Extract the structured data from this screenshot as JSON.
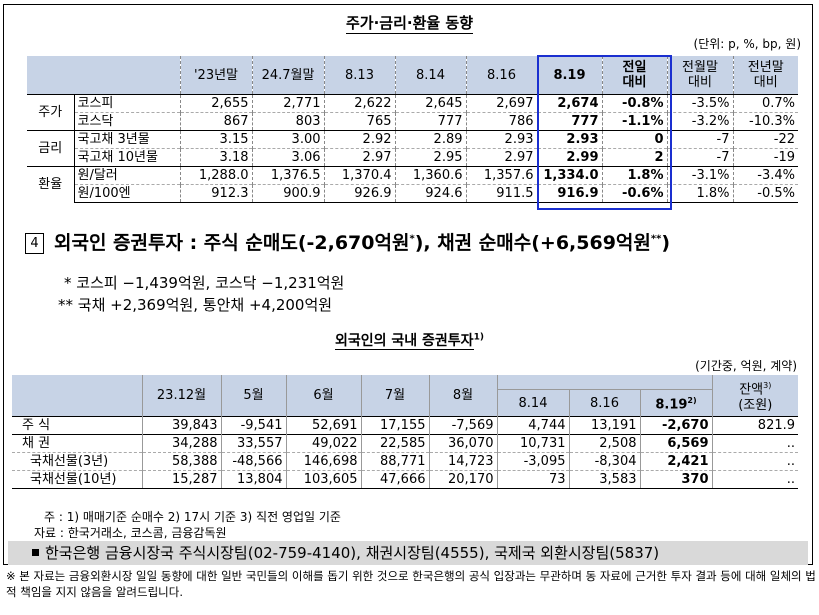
{
  "title": "주가·금리·환율 동향",
  "unit": "(단위: p, %, bp, 원)",
  "table1": {
    "headers": [
      "",
      "",
      "'23년말",
      "24.7월말",
      "8.13",
      "8.14",
      "8.16",
      "8.19",
      "전일\n대비",
      "전월말\n대비",
      "전년말\n대비"
    ],
    "groups": [
      {
        "name": "주가",
        "rows": [
          {
            "label": "코스피",
            "values": [
              "2,655",
              "2,771",
              "2,622",
              "2,645",
              "2,697",
              "2,674",
              "-0.8%",
              "-3.5%",
              "0.7%"
            ]
          },
          {
            "label": "코스닥",
            "values": [
              "867",
              "803",
              "765",
              "777",
              "786",
              "777",
              "-1.1%",
              "-3.2%",
              "-10.3%"
            ]
          }
        ]
      },
      {
        "name": "금리",
        "rows": [
          {
            "label": "국고채 3년물",
            "values": [
              "3.15",
              "3.00",
              "2.92",
              "2.89",
              "2.93",
              "2.93",
              "0",
              "-7",
              "-22"
            ]
          },
          {
            "label": "국고채 10년물",
            "values": [
              "3.18",
              "3.06",
              "2.97",
              "2.95",
              "2.97",
              "2.99",
              "2",
              "-7",
              "-19"
            ]
          }
        ]
      },
      {
        "name": "환율",
        "rows": [
          {
            "label": "원/달러",
            "values": [
              "1,288.0",
              "1,376.5",
              "1,370.4",
              "1,360.6",
              "1,357.6",
              "1,334.0",
              "1.8%",
              "-3.1%",
              "-3.4%"
            ]
          },
          {
            "label": "원/100엔",
            "values": [
              "912.3",
              "900.9",
              "926.9",
              "924.6",
              "911.5",
              "916.9",
              "-0.6%",
              "1.8%",
              "-0.5%"
            ]
          }
        ]
      }
    ]
  },
  "section4": {
    "number": "4",
    "text": "외국인 증권투자 : 주식 순매도(-2,670억원",
    "sup1": "*",
    "text2": "), 채권 순매수(+6,569억원",
    "sup2": "**",
    "text3": ")"
  },
  "notes": [
    "*  코스피 −1,439억원, 코스닥 −1,231억원",
    "**  국채 +2,369억원, 통안채 +4,200억원"
  ],
  "title2": "외국인의 국내 증권투자",
  "title2_sup": "1)",
  "unit2": "(기간중, 억원, 계약)",
  "table2": {
    "headers": [
      "23.12월",
      "5월",
      "6월",
      "7월",
      "8월",
      "8.14",
      "8.16",
      "8.19",
      "잔액",
      "(조원)"
    ],
    "header_sup_819": "2)",
    "header_sup_bal": "3)",
    "rows": [
      {
        "label": "주   식",
        "values": [
          "39,843",
          "-9,541",
          "52,691",
          "17,155",
          "-7,569",
          "4,744",
          "13,191",
          "-2,670",
          "821.9"
        ]
      },
      {
        "label": "채   권",
        "values": [
          "34,288",
          "33,557",
          "49,022",
          "22,585",
          "36,070",
          "10,731",
          "2,508",
          "6,569",
          ".."
        ]
      },
      {
        "label": "국채선물(3년)",
        "values": [
          "58,388",
          "-48,566",
          "146,698",
          "88,771",
          "14,723",
          "-3,095",
          "-8,304",
          "2,421",
          ".."
        ]
      },
      {
        "label": "국채선물(10년)",
        "values": [
          "15,287",
          "13,804",
          "103,605",
          "47,666",
          "20,170",
          "73",
          "3,583",
          "370",
          ".."
        ]
      }
    ]
  },
  "footnote1": "주 : 1)  매매기준 순매수      2) 17시 기준      3)  직전 영업일 기준",
  "footnote2": "자료 : 한국거래소, 코스콤, 금융감독원",
  "contact": "한국은행 금융시장국 주식시장팀(02-759-4140), 채권시장팀(4555), 국제국 외환시장팀(5837)",
  "disclaimer": "※ 본 자료는 금융외환시장 일일 동향에 대한 일반 국민들의 이해를 돕기 위한 것으로 한국은행의 공식 입장과는 무관하며 동 자료에 근거한 투자 결과 등에 대해 일체의 법적 책임을 지지 않음을 알려드립니다."
}
